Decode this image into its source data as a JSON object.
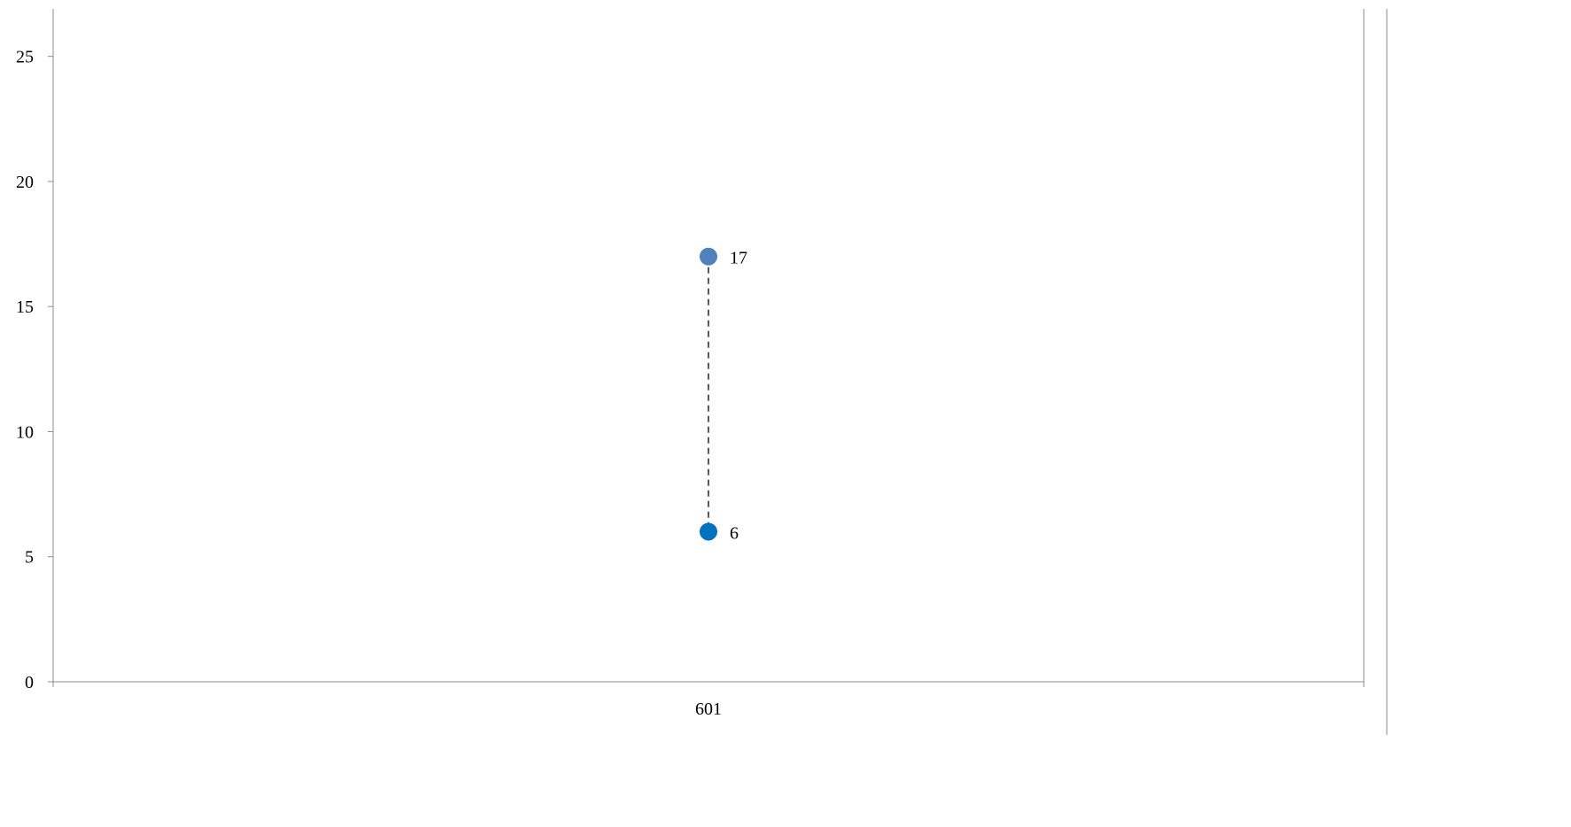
{
  "chart_data": {
    "type": "scatter",
    "title": "",
    "xlabel": "",
    "ylabel": "",
    "categories": [
      "601"
    ],
    "ylim": [
      0,
      26.9
    ],
    "y_ticks": [
      0,
      5,
      10,
      15,
      20,
      25
    ],
    "grid": false,
    "legend": "none",
    "series": [
      {
        "values": [
          17
        ],
        "color": "#4f81bd",
        "data_labels": [
          "17"
        ]
      },
      {
        "values": [
          6
        ],
        "color": "#0070c0",
        "data_labels": [
          "6"
        ]
      }
    ],
    "connector": {
      "style": "dashed",
      "color": "#000000",
      "from": 6,
      "to": 17
    }
  }
}
